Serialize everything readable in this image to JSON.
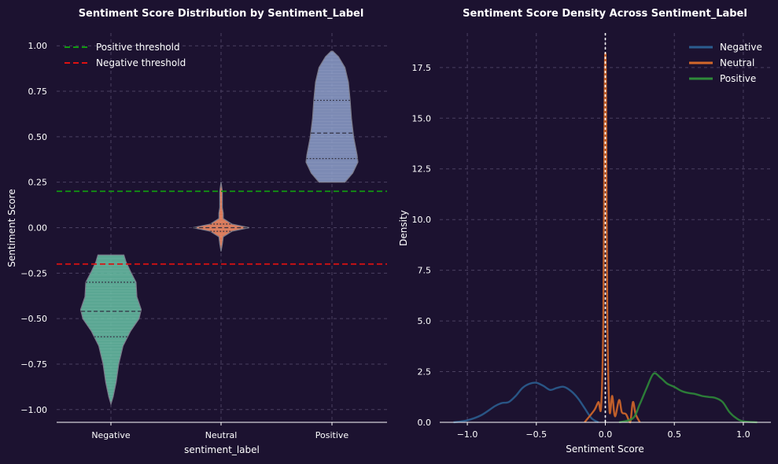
{
  "colors": {
    "background": "#1c1230",
    "grid": "#4a4060",
    "axis": "#ffffff",
    "negative_violin": "#66c2a5",
    "neutral_violin": "#fc8d62",
    "positive_violin": "#8da0cb",
    "kde_negative": "#2b5d8f",
    "kde_neutral": "#d4682a",
    "kde_positive": "#2f8a3a",
    "positive_threshold": "#119911",
    "negative_threshold": "#dd1111",
    "zero_line": "#ffffff"
  },
  "chart_data": [
    {
      "type": "violin",
      "title": "Sentiment Score Distribution by Sentiment_Label",
      "xlabel": "sentiment_label",
      "ylabel": "Sentiment Score",
      "categories": [
        "Negative",
        "Neutral",
        "Positive"
      ],
      "ylim": [
        -1.07,
        1.07
      ],
      "yticks": [
        1.0,
        0.75,
        0.5,
        0.25,
        0.0,
        -0.25,
        -0.5,
        -0.75,
        -1.0
      ],
      "ytick_labels": [
        "1.00",
        "0.75",
        "0.50",
        "0.25",
        "0.00",
        "−0.25",
        "−0.50",
        "−0.75",
        "−1.00"
      ],
      "grid": true,
      "legend_position": "top-left",
      "thresholds": [
        {
          "name": "Positive threshold",
          "value": 0.2
        },
        {
          "name": "Negative threshold",
          "value": -0.2
        }
      ],
      "violins": [
        {
          "category": "Negative",
          "min": -0.97,
          "max": -0.15,
          "quartiles": [
            -0.6,
            -0.46,
            -0.3
          ],
          "profile": [
            [
              -0.97,
              0.0
            ],
            [
              -0.93,
              0.05
            ],
            [
              -0.85,
              0.12
            ],
            [
              -0.75,
              0.18
            ],
            [
              -0.65,
              0.28
            ],
            [
              -0.57,
              0.45
            ],
            [
              -0.5,
              0.65
            ],
            [
              -0.45,
              0.7
            ],
            [
              -0.38,
              0.6
            ],
            [
              -0.3,
              0.58
            ],
            [
              -0.24,
              0.45
            ],
            [
              -0.19,
              0.35
            ],
            [
              -0.15,
              0.3
            ]
          ]
        },
        {
          "category": "Neutral",
          "min": -0.13,
          "max": 0.25,
          "quartiles": [
            -0.02,
            0.0,
            0.02
          ],
          "profile": [
            [
              -0.13,
              0.0
            ],
            [
              -0.09,
              0.03
            ],
            [
              -0.05,
              0.05
            ],
            [
              -0.02,
              0.25
            ],
            [
              0.0,
              0.65
            ],
            [
              0.02,
              0.25
            ],
            [
              0.05,
              0.05
            ],
            [
              0.08,
              0.05
            ],
            [
              0.11,
              0.03
            ],
            [
              0.15,
              0.03
            ],
            [
              0.2,
              0.03
            ],
            [
              0.25,
              0.0
            ]
          ]
        },
        {
          "category": "Positive",
          "min": 0.25,
          "max": 0.97,
          "quartiles": [
            0.38,
            0.52,
            0.7
          ],
          "profile": [
            [
              0.25,
              0.3
            ],
            [
              0.3,
              0.48
            ],
            [
              0.36,
              0.6
            ],
            [
              0.4,
              0.58
            ],
            [
              0.5,
              0.5
            ],
            [
              0.6,
              0.45
            ],
            [
              0.7,
              0.42
            ],
            [
              0.8,
              0.38
            ],
            [
              0.88,
              0.3
            ],
            [
              0.94,
              0.15
            ],
            [
              0.97,
              0.02
            ]
          ]
        }
      ]
    },
    {
      "type": "line",
      "title": "Sentiment Score Density  Across Sentiment_Label",
      "xlabel": "Sentiment Score",
      "ylabel": "Density",
      "xlim": [
        -1.2,
        1.2
      ],
      "ylim": [
        0,
        19.2
      ],
      "xticks": [
        -1.0,
        -0.5,
        0.0,
        0.5,
        1.0
      ],
      "xtick_labels": [
        "−1.0",
        "−0.5",
        "0.0",
        "0.5",
        "1.0"
      ],
      "yticks": [
        0.0,
        2.5,
        5.0,
        7.5,
        10.0,
        12.5,
        15.0,
        17.5
      ],
      "ytick_labels": [
        "0.0",
        "2.5",
        "5.0",
        "7.5",
        "10.0",
        "12.5",
        "15.0",
        "17.5"
      ],
      "grid": true,
      "legend_position": "top-right",
      "vertical_line_x": 0.0,
      "series": [
        {
          "name": "Negative",
          "points": [
            [
              -1.1,
              0.0
            ],
            [
              -1.0,
              0.1
            ],
            [
              -0.9,
              0.35
            ],
            [
              -0.8,
              0.8
            ],
            [
              -0.75,
              0.95
            ],
            [
              -0.7,
              1.0
            ],
            [
              -0.65,
              1.3
            ],
            [
              -0.6,
              1.7
            ],
            [
              -0.55,
              1.9
            ],
            [
              -0.5,
              1.95
            ],
            [
              -0.45,
              1.8
            ],
            [
              -0.4,
              1.6
            ],
            [
              -0.35,
              1.7
            ],
            [
              -0.3,
              1.75
            ],
            [
              -0.25,
              1.55
            ],
            [
              -0.2,
              1.2
            ],
            [
              -0.15,
              0.7
            ],
            [
              -0.1,
              0.2
            ],
            [
              -0.05,
              0.0
            ]
          ]
        },
        {
          "name": "Neutral",
          "points": [
            [
              -0.15,
              0.0
            ],
            [
              -0.08,
              0.6
            ],
            [
              -0.05,
              1.0
            ],
            [
              -0.03,
              0.8
            ],
            [
              -0.015,
              5.0
            ],
            [
              -0.005,
              16.0
            ],
            [
              0.0,
              18.2
            ],
            [
              0.005,
              16.0
            ],
            [
              0.015,
              5.0
            ],
            [
              0.03,
              0.6
            ],
            [
              0.05,
              1.3
            ],
            [
              0.07,
              0.3
            ],
            [
              0.1,
              1.1
            ],
            [
              0.12,
              0.5
            ],
            [
              0.15,
              0.4
            ],
            [
              0.18,
              0.0
            ],
            [
              0.2,
              1.0
            ],
            [
              0.22,
              0.4
            ],
            [
              0.25,
              0.0
            ]
          ]
        },
        {
          "name": "Positive",
          "points": [
            [
              0.1,
              0.0
            ],
            [
              0.2,
              0.2
            ],
            [
              0.25,
              0.9
            ],
            [
              0.3,
              1.7
            ],
            [
              0.35,
              2.4
            ],
            [
              0.4,
              2.2
            ],
            [
              0.45,
              1.9
            ],
            [
              0.5,
              1.75
            ],
            [
              0.55,
              1.55
            ],
            [
              0.6,
              1.45
            ],
            [
              0.65,
              1.4
            ],
            [
              0.7,
              1.3
            ],
            [
              0.75,
              1.25
            ],
            [
              0.8,
              1.2
            ],
            [
              0.85,
              1.0
            ],
            [
              0.9,
              0.5
            ],
            [
              0.95,
              0.2
            ],
            [
              1.0,
              0.05
            ],
            [
              1.1,
              0.0
            ]
          ]
        }
      ]
    }
  ]
}
